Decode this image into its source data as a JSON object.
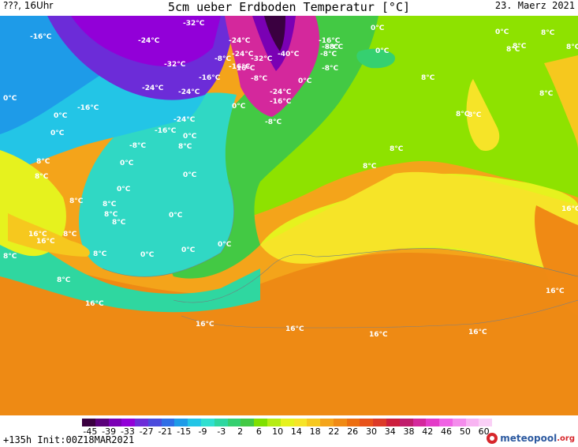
{
  "header": {
    "run_label": "???, 16Uhr",
    "title": "5cm ueber Erdboden Temperatur [°C]",
    "date": "23. Maerz 2021"
  },
  "footer": {
    "init_text": "+135h Init:00Z18MAR2021",
    "logo_text": "meteopool",
    "logo_suffix": ".org"
  },
  "colorbar": {
    "tick_labels": [
      "-45",
      "-39",
      "-33",
      "-27",
      "-21",
      "-15",
      "-9",
      "-3",
      "2",
      "6",
      "10",
      "14",
      "18",
      "22",
      "26",
      "30",
      "34",
      "38",
      "42",
      "46",
      "50",
      "60"
    ],
    "colors": [
      "#3a0040",
      "#5a007a",
      "#7a00b4",
      "#9200d8",
      "#6c2cd8",
      "#4b4bdc",
      "#2f6ee6",
      "#1e9be8",
      "#23c5e6",
      "#30e0d0",
      "#2fd7a0",
      "#35d070",
      "#43c944",
      "#7fe000",
      "#b6ec14",
      "#e6f21e",
      "#f6e428",
      "#f6c81e",
      "#f4a41a",
      "#f08a14",
      "#ec6e10",
      "#e8521a",
      "#dc3a28",
      "#cc1e3c",
      "#c01c6c",
      "#d4289c",
      "#e43cc8",
      "#f062e4",
      "#f48cec",
      "#f8b4f2",
      "#fad0f6"
    ]
  },
  "map_labels": [
    {
      "text": "-16°C"
    },
    {
      "text": "-24°C"
    },
    {
      "text": "-32°C"
    },
    {
      "text": "-24°C"
    },
    {
      "text": "-32°C"
    },
    {
      "text": "-24°C"
    },
    {
      "text": "-24°C"
    },
    {
      "text": "-16°C"
    },
    {
      "text": "-32°C"
    },
    {
      "text": "-24°C"
    },
    {
      "text": "-16°C"
    },
    {
      "text": "-40°C"
    },
    {
      "text": "-8°C"
    },
    {
      "text": "-24°C"
    },
    {
      "text": "-16°C"
    },
    {
      "text": "-8°C"
    },
    {
      "text": "0°C"
    },
    {
      "text": "0°C"
    },
    {
      "text": "-8°C"
    },
    {
      "text": "-8°C"
    },
    {
      "text": "8°C"
    },
    {
      "text": "-16°C"
    },
    {
      "text": "0°C"
    },
    {
      "text": "0°C"
    },
    {
      "text": "-16°C"
    },
    {
      "text": "0°C"
    },
    {
      "text": "-24°C"
    },
    {
      "text": "-16°C"
    },
    {
      "text": "-8°C"
    },
    {
      "text": "8°C"
    },
    {
      "text": "8°C"
    },
    {
      "text": "8°C"
    },
    {
      "text": "8°C"
    },
    {
      "text": "8°C"
    },
    {
      "text": "0°C"
    },
    {
      "text": "-8°C"
    },
    {
      "text": "-16°C"
    },
    {
      "text": "0°C"
    },
    {
      "text": "0°C"
    },
    {
      "text": "-8°C"
    },
    {
      "text": "-8°C"
    },
    {
      "text": "8°C"
    },
    {
      "text": "8°C"
    },
    {
      "text": "8°C"
    },
    {
      "text": "0°C"
    },
    {
      "text": "0°C"
    },
    {
      "text": "8°C"
    },
    {
      "text": "0°C"
    },
    {
      "text": "8°C"
    },
    {
      "text": "8°C"
    },
    {
      "text": "8°C"
    },
    {
      "text": "0°C"
    },
    {
      "text": "8°C"
    },
    {
      "text": "8°C"
    },
    {
      "text": "16°C"
    },
    {
      "text": "16°C"
    },
    {
      "text": "8°C"
    },
    {
      "text": "8°C"
    },
    {
      "text": "0°C"
    },
    {
      "text": "0°C"
    },
    {
      "text": "8°C"
    },
    {
      "text": "8°C"
    },
    {
      "text": "16°C"
    },
    {
      "text": "8°C"
    },
    {
      "text": "8°C"
    },
    {
      "text": "16°C"
    },
    {
      "text": "16°C"
    },
    {
      "text": "16°C"
    },
    {
      "text": "16°C"
    },
    {
      "text": "16°C"
    },
    {
      "text": "16°C"
    },
    {
      "text": "0°C"
    },
    {
      "text": "0°C"
    }
  ]
}
